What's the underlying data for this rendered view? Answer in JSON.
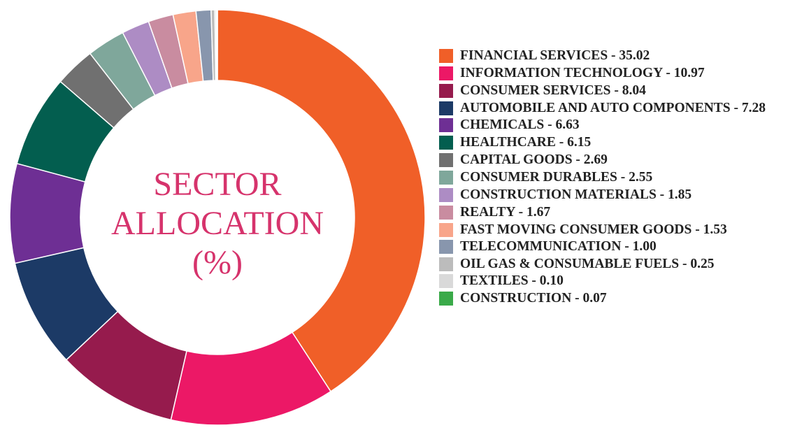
{
  "chart_data": {
    "type": "pie",
    "title": "SECTOR ALLOCATION (%)",
    "title_lines": [
      "SECTOR",
      "ALLOCATION",
      "(%)"
    ],
    "donut": true,
    "start": "top",
    "direction": "clockwise",
    "legend_position": "right",
    "title_color": "#d6336c",
    "slices": [
      {
        "label": "FINANCIAL SERVICES",
        "value": 35.02,
        "color": "#f05f28",
        "legend_text": "FINANCIAL SERVICES - 35.02"
      },
      {
        "label": "INFORMATION TECHNOLOGY",
        "value": 10.97,
        "color": "#ec1866",
        "legend_text": "INFORMATION TECHNOLOGY - 10.97"
      },
      {
        "label": "CONSUMER SERVICES",
        "value": 8.04,
        "color": "#961b4d",
        "legend_text": "CONSUMER SERVICES - 8.04"
      },
      {
        "label": "AUTOMOBILE AND AUTO COMPONENTS",
        "value": 7.28,
        "color": "#1c3a66",
        "legend_text": "AUTOMOBILE AND AUTO COMPONENTS - 7.28"
      },
      {
        "label": "CHEMICALS",
        "value": 6.63,
        "color": "#6e2f94",
        "legend_text": "CHEMICALS - 6.63"
      },
      {
        "label": "HEALTHCARE",
        "value": 6.15,
        "color": "#035e4f",
        "legend_text": "HEALTHCARE - 6.15"
      },
      {
        "label": "CAPITAL GOODS",
        "value": 2.69,
        "color": "#707070",
        "legend_text": "CAPITAL GOODS - 2.69"
      },
      {
        "label": "CONSUMER DURABLES",
        "value": 2.55,
        "color": "#7fa79b",
        "legend_text": "CONSUMER DURABLES - 2.55"
      },
      {
        "label": "CONSTRUCTION MATERIALS",
        "value": 1.85,
        "color": "#ad8cc4",
        "legend_text": "CONSTRUCTION MATERIALS - 1.85"
      },
      {
        "label": "REALTY",
        "value": 1.67,
        "color": "#c98ca0",
        "legend_text": "REALTY - 1.67"
      },
      {
        "label": "FAST MOVING CONSUMER GOODS",
        "value": 1.53,
        "color": "#f8a58a",
        "legend_text": "FAST MOVING CONSUMER GOODS - 1.53"
      },
      {
        "label": "TELECOMMUNICATION",
        "value": 1.0,
        "color": "#8896ad",
        "legend_text": "TELECOMMUNICATION - 1.00"
      },
      {
        "label": "OIL GAS & CONSUMABLE FUELS",
        "value": 0.25,
        "color": "#bcbcbc",
        "legend_text": "OIL GAS & CONSUMABLE FUELS - 0.25"
      },
      {
        "label": "TEXTILES",
        "value": 0.1,
        "color": "#d9d9d9",
        "legend_text": "TEXTILES - 0.10"
      },
      {
        "label": "CONSTRUCTION",
        "value": 0.07,
        "color": "#3aaa49",
        "legend_text": "CONSTRUCTION - 0.07"
      }
    ]
  }
}
